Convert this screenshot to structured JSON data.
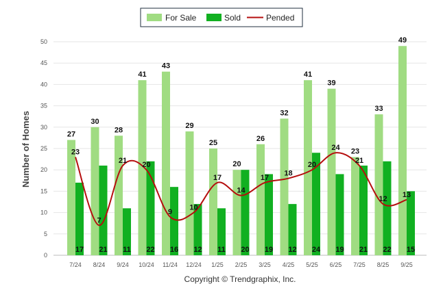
{
  "chart_data": {
    "type": "bar",
    "categories": [
      "7/24",
      "8/24",
      "9/24",
      "10/24",
      "11/24",
      "12/24",
      "1/25",
      "2/25",
      "3/25",
      "4/25",
      "5/25",
      "6/25",
      "7/25",
      "8/25",
      "9/25"
    ],
    "series": [
      {
        "name": "For Sale",
        "type": "bar",
        "color": "#a0dc82",
        "values": [
          27,
          30,
          28,
          41,
          43,
          29,
          25,
          20,
          26,
          32,
          41,
          39,
          23,
          33,
          49
        ]
      },
      {
        "name": "Sold",
        "type": "bar",
        "color": "#11b021",
        "values": [
          17,
          21,
          11,
          22,
          16,
          12,
          11,
          20,
          19,
          12,
          24,
          19,
          21,
          22,
          15
        ]
      },
      {
        "name": "Pended",
        "type": "line",
        "color": "#b50e0e",
        "values": [
          23,
          7,
          21,
          20,
          9,
          10,
          17,
          14,
          17,
          18,
          20,
          24,
          21,
          12,
          13
        ]
      }
    ],
    "ylabel": "Number of Homes",
    "xlabel": "",
    "ylim": [
      0,
      50
    ],
    "yticks": [
      0,
      5,
      10,
      15,
      20,
      25,
      30,
      35,
      40,
      45,
      50
    ],
    "grid": true,
    "legend": "top-center"
  },
  "footer": {
    "copyright": "Copyright © Trendgraphix, Inc."
  }
}
